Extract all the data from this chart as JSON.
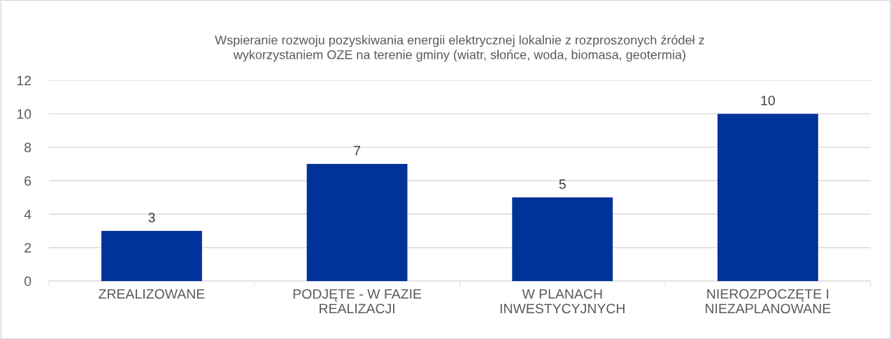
{
  "chart_data": {
    "type": "bar",
    "title": "Wspieranie rozwoju pozyskiwania energii elektrycznej lokalnie z rozproszonych źródeł z\nwykorzystaniem OZE na terenie gminy (wiatr, słońce, woda, biomasa, geotermia)",
    "categories": [
      "ZREALIZOWANE",
      "PODJĘTE - W FAZIE\nREALIZACJI",
      "W PLANACH\nINWESTYCYJNYCH",
      "NIEROZPOCZĘTE I\nNIEZAPLANOWANE"
    ],
    "values": [
      3,
      7,
      5,
      10
    ],
    "color": "#003399",
    "ylim": [
      0,
      12
    ],
    "yticks": [
      0,
      2,
      4,
      6,
      8,
      10,
      12
    ],
    "grid": "y",
    "data_labels": true
  }
}
